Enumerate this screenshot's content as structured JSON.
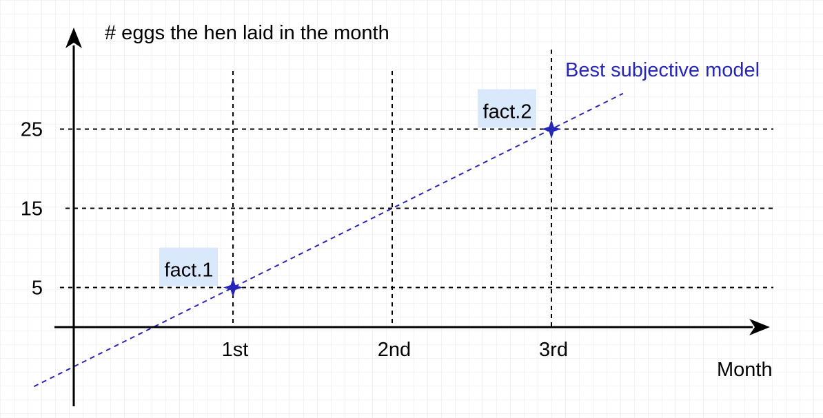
{
  "chart_data": {
    "type": "scatter",
    "ylabel": "# eggs the hen laid in the month",
    "xlabel": "Month",
    "categories": [
      "1st",
      "2nd",
      "3rd"
    ],
    "yticks": [
      5,
      15,
      25
    ],
    "points": [
      {
        "label": "fact.1",
        "x": 1,
        "y": 5
      },
      {
        "label": "fact.2",
        "x": 3,
        "y": 25
      }
    ],
    "model_line": {
      "label": "Best subjective model",
      "slope": 10,
      "intercept": -5
    },
    "grid": "dashed",
    "colors": {
      "axis": "#000000",
      "grid": "#000000",
      "model": "#2626b8",
      "point": "#2626b8",
      "label_highlight": "#dae8fc"
    }
  }
}
